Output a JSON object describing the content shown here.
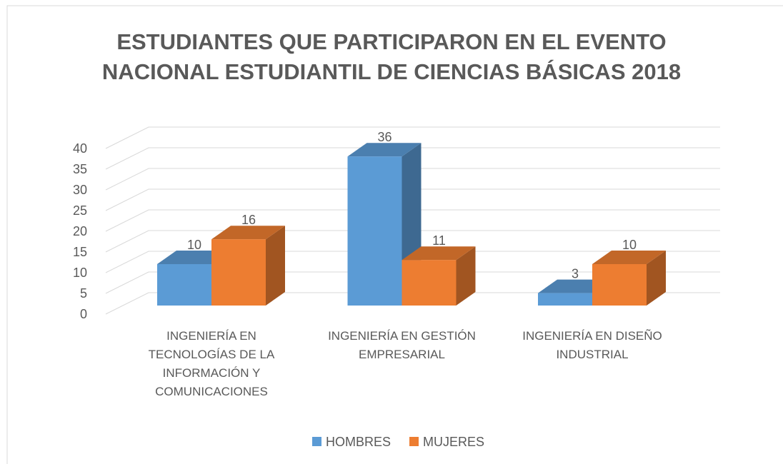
{
  "chart_data": {
    "type": "bar3d",
    "title": "ESTUDIANTES QUE PARTICIPARON EN EL EVENTO\nNACIONAL ESTUDIANTIL DE CIENCIAS BÁSICAS 2018",
    "categories": [
      "INGENIERÍA EN TECNOLOGÍAS DE LA INFORMACIÓN Y COMUNICACIONES",
      "INGENIERÍA EN GESTIÓN EMPRESARIAL",
      "INGENIERÍA EN DISEÑO INDUSTRIAL"
    ],
    "series": [
      {
        "name": "HOMBRES",
        "color": "#5b9bd5",
        "values": [
          10,
          36,
          3
        ]
      },
      {
        "name": "MUJERES",
        "color": "#ed7d31",
        "values": [
          16,
          11,
          10
        ]
      }
    ],
    "ylim": [
      0,
      40
    ],
    "yticks": [
      0,
      5,
      10,
      15,
      20,
      25,
      30,
      35,
      40
    ],
    "grid": true,
    "legend": "bottom"
  }
}
